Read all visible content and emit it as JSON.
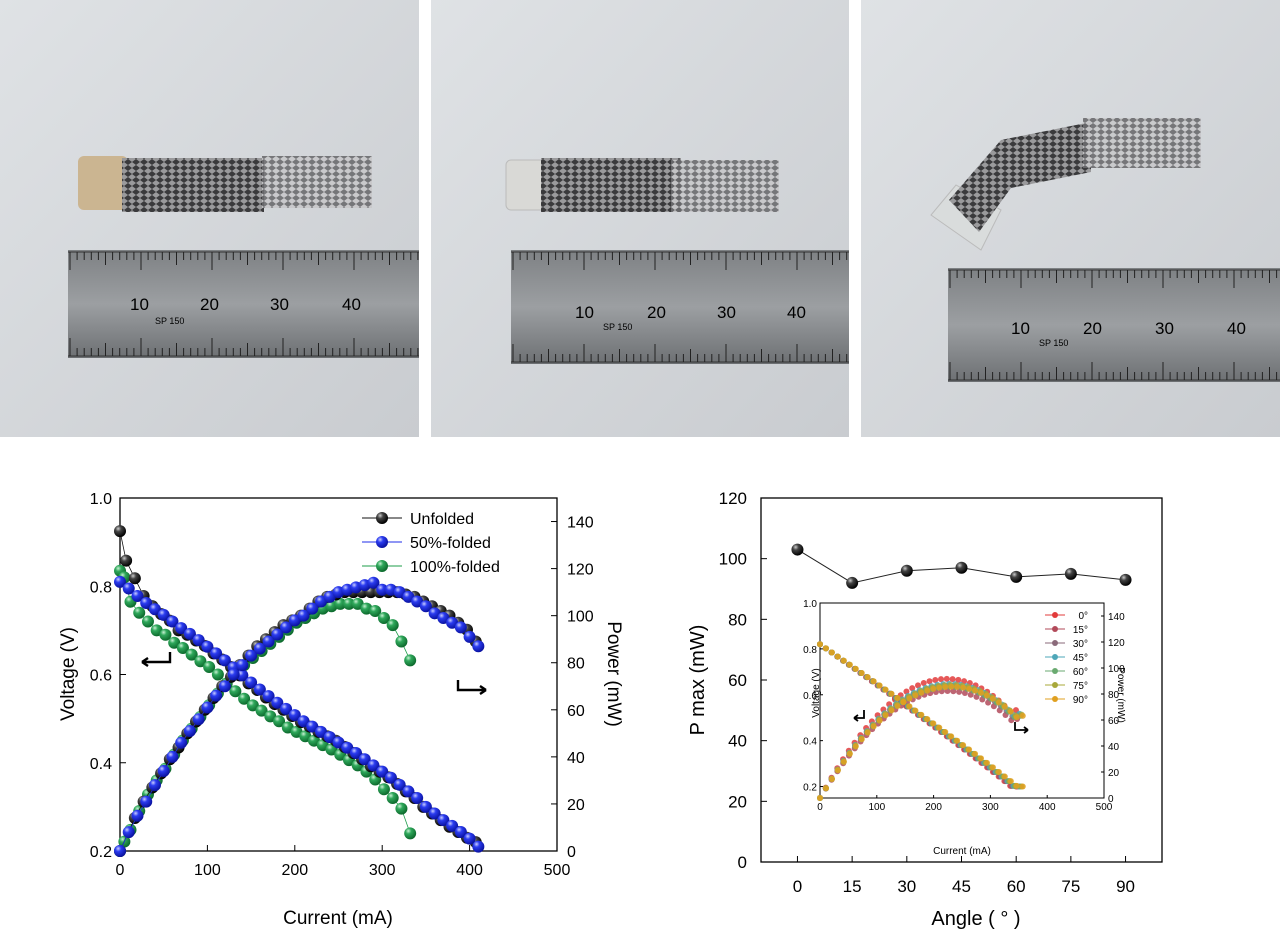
{
  "photos": [
    {
      "ruler_ticks": [
        "10",
        "20",
        "30",
        "40"
      ],
      "ruler_mark": "SP 150"
    },
    {
      "ruler_ticks": [
        "10",
        "20",
        "30",
        "40"
      ],
      "ruler_mark": "SP 150"
    },
    {
      "ruler_ticks": [
        "10",
        "20",
        "30",
        "40"
      ],
      "ruler_mark": "SP 150"
    }
  ],
  "colors": {
    "unfolded": "#111111",
    "half": "#1f2ee8",
    "full": "#1e9c4a",
    "a0": "#e23b3b",
    "a15": "#b24a5a",
    "a30": "#8a6a7a",
    "a45": "#4ea7b8",
    "a60": "#6aaa70",
    "a75": "#a8a83a",
    "a90": "#e0a020"
  },
  "chart_data": [
    {
      "type": "scatter",
      "xlabel": "Current (mA)",
      "ylabel": "Voltage (V)",
      "y2label": "Power (mW)",
      "xlim": [
        0,
        500
      ],
      "ylim": [
        0.2,
        1.0
      ],
      "y2lim": [
        0,
        150
      ],
      "xticks": [
        "0",
        "100",
        "200",
        "300",
        "400",
        "500"
      ],
      "yticks": [
        "0.2",
        "0.4",
        "0.6",
        "0.8",
        "1.0"
      ],
      "y2ticks": [
        "0",
        "20",
        "40",
        "60",
        "80",
        "100",
        "120",
        "140"
      ],
      "legend": [
        "Unfolded",
        "50%-folded",
        "100%-folded"
      ],
      "legend_position": "top-right",
      "voltage_series": [
        {
          "name": "Unfolded",
          "x": [
            0,
            7,
            17,
            27,
            37,
            47,
            57,
            67,
            77,
            87,
            97,
            107,
            117,
            127,
            137,
            147,
            157,
            167,
            177,
            187,
            197,
            207,
            217,
            227,
            237,
            247,
            257,
            267,
            277,
            287,
            297,
            307,
            317,
            327,
            337,
            347,
            357,
            367,
            377,
            387,
            397,
            407
          ],
          "y": [
            0.925,
            0.858,
            0.818,
            0.778,
            0.755,
            0.737,
            0.722,
            0.7,
            0.69,
            0.677,
            0.665,
            0.648,
            0.634,
            0.617,
            0.598,
            0.58,
            0.565,
            0.548,
            0.533,
            0.52,
            0.506,
            0.492,
            0.482,
            0.47,
            0.46,
            0.45,
            0.436,
            0.422,
            0.408,
            0.392,
            0.38,
            0.367,
            0.352,
            0.335,
            0.32,
            0.3,
            0.285,
            0.27,
            0.255,
            0.243,
            0.23,
            0.22
          ]
        },
        {
          "name": "50%-folded",
          "x": [
            0,
            10,
            20,
            30,
            40,
            50,
            60,
            70,
            80,
            90,
            100,
            110,
            120,
            130,
            140,
            150,
            160,
            170,
            180,
            190,
            200,
            210,
            220,
            230,
            240,
            250,
            260,
            270,
            280,
            290,
            300,
            310,
            320,
            330,
            340,
            350,
            360,
            370,
            380,
            390,
            400,
            410
          ],
          "y": [
            0.81,
            0.795,
            0.778,
            0.762,
            0.748,
            0.735,
            0.72,
            0.705,
            0.692,
            0.678,
            0.663,
            0.648,
            0.632,
            0.616,
            0.598,
            0.582,
            0.566,
            0.551,
            0.536,
            0.522,
            0.508,
            0.494,
            0.482,
            0.47,
            0.458,
            0.446,
            0.434,
            0.422,
            0.408,
            0.394,
            0.38,
            0.366,
            0.35,
            0.335,
            0.32,
            0.3,
            0.285,
            0.27,
            0.257,
            0.243,
            0.228,
            0.21
          ]
        },
        {
          "name": "100%-folded",
          "x": [
            0,
            5,
            12,
            22,
            32,
            42,
            52,
            62,
            72,
            82,
            92,
            102,
            112,
            122,
            132,
            142,
            152,
            162,
            172,
            182,
            192,
            202,
            212,
            222,
            232,
            242,
            252,
            262,
            272,
            282,
            292,
            302,
            312,
            322,
            332
          ],
          "y": [
            0.835,
            0.82,
            0.765,
            0.74,
            0.72,
            0.7,
            0.69,
            0.672,
            0.66,
            0.645,
            0.63,
            0.617,
            0.6,
            0.58,
            0.562,
            0.545,
            0.53,
            0.518,
            0.505,
            0.494,
            0.48,
            0.47,
            0.46,
            0.45,
            0.44,
            0.43,
            0.418,
            0.406,
            0.394,
            0.38,
            0.362,
            0.34,
            0.32,
            0.296,
            0.24
          ]
        }
      ],
      "power_series": [
        {
          "name": "Unfolded",
          "x": [
            0,
            17,
            27,
            37,
            47,
            57,
            67,
            77,
            87,
            97,
            107,
            117,
            127,
            137,
            147,
            157,
            167,
            177,
            187,
            197,
            207,
            217,
            227,
            237,
            247,
            257,
            267,
            277,
            287,
            297,
            307,
            317,
            327,
            337,
            347,
            357,
            367,
            377,
            387,
            397,
            407
          ],
          "y": [
            0,
            14,
            21,
            27,
            33,
            39,
            44,
            50,
            55,
            60,
            65,
            70,
            74,
            79,
            83,
            87,
            90,
            93,
            96,
            98,
            100,
            103,
            106,
            108,
            109,
            110,
            110,
            110,
            110,
            110,
            110,
            110,
            109,
            108,
            106,
            104,
            102,
            100,
            97,
            94,
            89
          ]
        },
        {
          "name": "50%-folded",
          "x": [
            0,
            10,
            20,
            30,
            40,
            50,
            60,
            70,
            80,
            90,
            100,
            110,
            120,
            130,
            140,
            150,
            160,
            170,
            180,
            190,
            200,
            210,
            220,
            230,
            240,
            250,
            260,
            270,
            280,
            290,
            300,
            310,
            320,
            330,
            340,
            350,
            360,
            370,
            380,
            390,
            400,
            410
          ],
          "y": [
            0,
            8,
            15,
            21,
            28,
            34,
            40,
            46,
            51,
            56,
            61,
            66,
            70,
            75,
            79,
            83,
            86,
            89,
            92,
            95,
            98,
            100,
            103,
            106,
            108,
            110,
            111,
            112,
            113,
            114,
            111,
            111,
            110,
            108,
            106,
            104,
            101,
            99,
            97,
            95,
            91,
            87
          ]
        },
        {
          "name": "100%-folded",
          "x": [
            0,
            5,
            12,
            22,
            32,
            42,
            52,
            62,
            72,
            82,
            92,
            102,
            112,
            122,
            132,
            142,
            152,
            162,
            172,
            182,
            192,
            202,
            212,
            222,
            232,
            242,
            252,
            262,
            272,
            282,
            292,
            302,
            312,
            322,
            332
          ],
          "y": [
            0,
            4,
            9,
            17,
            24,
            30,
            35,
            41,
            47,
            52,
            57,
            62,
            67,
            71,
            75,
            79,
            82,
            85,
            88,
            91,
            94,
            97,
            99,
            101,
            103,
            104,
            105,
            105,
            105,
            103,
            102,
            99,
            96,
            89,
            81
          ]
        }
      ]
    },
    {
      "type": "scatter",
      "xlabel": "Angle ( ° )",
      "ylabel": "P max (mW)",
      "xlim": [
        -10,
        100
      ],
      "ylim": [
        0,
        120
      ],
      "xticks": [
        "0",
        "15",
        "30",
        "45",
        "60",
        "75",
        "90"
      ],
      "yticks": [
        "0",
        "20",
        "40",
        "60",
        "80",
        "100",
        "120"
      ],
      "series": [
        {
          "x": [
            0,
            15,
            30,
            45,
            60,
            75,
            90
          ],
          "y": [
            103,
            92,
            96,
            97,
            94,
            95,
            93
          ]
        }
      ],
      "inset": {
        "xlabel": "Current (mA)",
        "ylabel": "Voltage (V)",
        "y2label": "Power (mW)",
        "xlim": [
          0,
          500
        ],
        "ylim": [
          0.15,
          1.0
        ],
        "y2lim": [
          0,
          150
        ],
        "xticks": [
          "0",
          "100",
          "200",
          "300",
          "400",
          "500"
        ],
        "yticks": [
          "0.2",
          "0.4",
          "0.6",
          "0.8",
          "1.0"
        ],
        "y2ticks": [
          "0",
          "20",
          "40",
          "60",
          "80",
          "100",
          "120",
          "140"
        ],
        "legend": [
          "0°",
          "15°",
          "30°",
          "45°",
          "60°",
          "75°",
          "90°"
        ],
        "legend_position": "top-right",
        "series_max_power": [
          103,
          92,
          96,
          97,
          94,
          95,
          93
        ]
      }
    }
  ]
}
